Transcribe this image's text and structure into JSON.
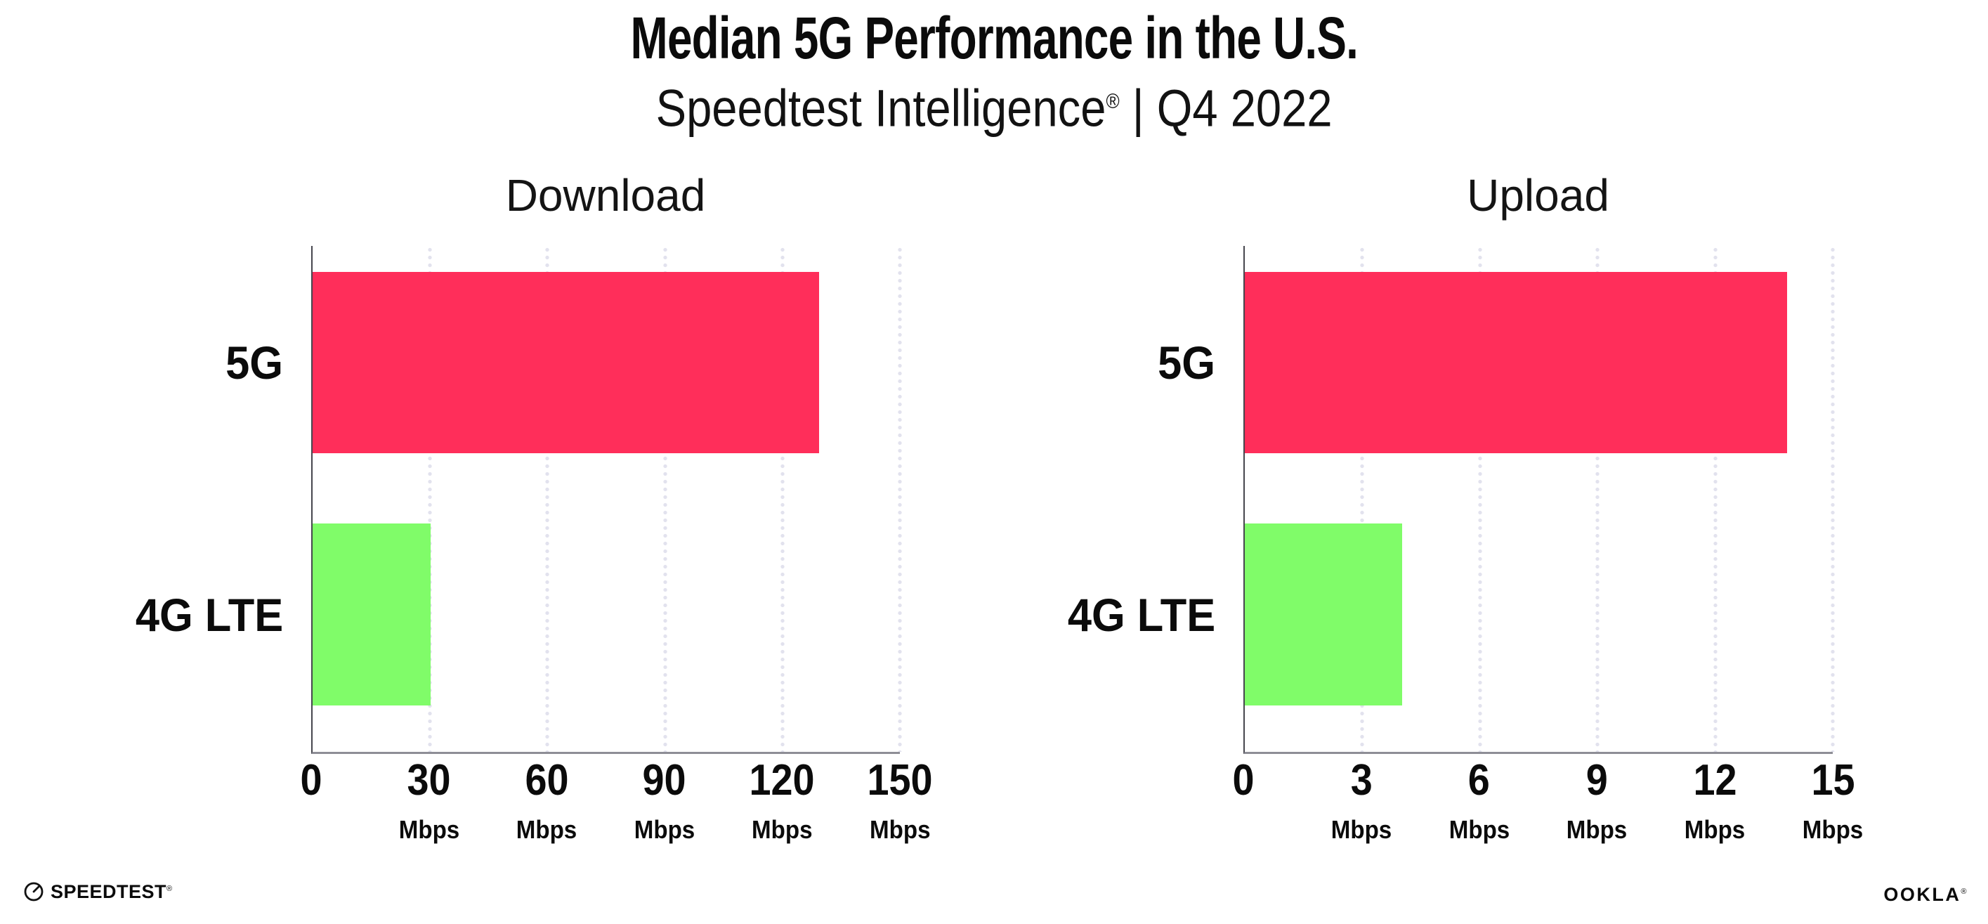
{
  "header": {
    "title": "Median 5G Performance in the U.S.",
    "subtitle_brand": "Speedtest Intelligence",
    "subtitle_reg": "®",
    "subtitle_rest": " | Q4 2022"
  },
  "chart_data": [
    {
      "type": "bar",
      "orientation": "horizontal",
      "title": "Download",
      "categories": [
        "5G",
        "4G LTE"
      ],
      "values": [
        129,
        30
      ],
      "unit": "Mbps",
      "xlabel": "",
      "ylabel": "",
      "xlim": [
        0,
        150
      ],
      "xticks": [
        0,
        30,
        60,
        90,
        120,
        150
      ],
      "bar_colors": [
        "#FF2E5A",
        "#80FC69"
      ],
      "grid": "dotted-vertical-gridlines",
      "legend": false
    },
    {
      "type": "bar",
      "orientation": "horizontal",
      "title": "Upload",
      "categories": [
        "5G",
        "4G LTE"
      ],
      "values": [
        13.8,
        4
      ],
      "unit": "Mbps",
      "xlabel": "",
      "ylabel": "",
      "xlim": [
        0,
        15
      ],
      "xticks": [
        0,
        3,
        6,
        9,
        12,
        15
      ],
      "bar_colors": [
        "#FF2E5A",
        "#80FC69"
      ],
      "grid": "dotted-vertical-gridlines",
      "legend": false
    }
  ],
  "footer": {
    "speedtest_label": "SPEEDTEST",
    "speedtest_mark": "®",
    "ookla_label": "OOKLA",
    "ookla_mark": "®"
  },
  "colors": {
    "bar_5g": "#FF2E5A",
    "bar_4g_lte": "#80FC69",
    "grid_dot": "#E2E2EE",
    "x_axis": "#8E8E96",
    "y_axis": "#46464E",
    "text": "#0B0B0B"
  }
}
